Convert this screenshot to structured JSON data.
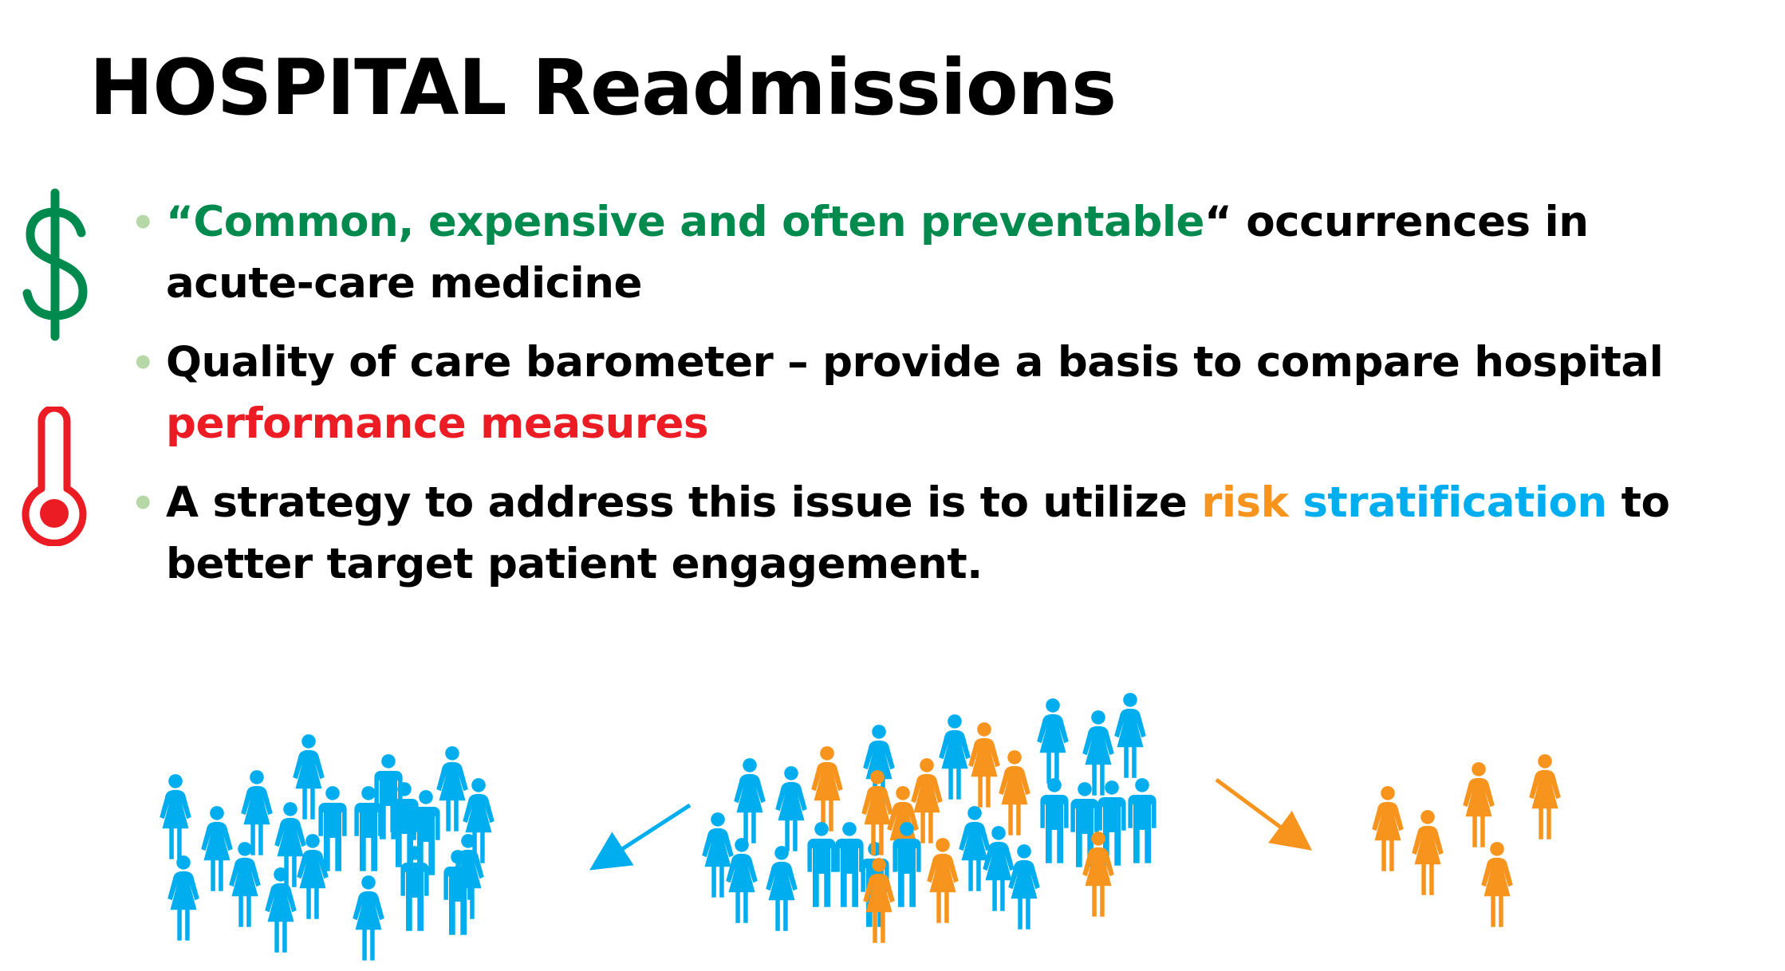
{
  "title": "HOSPITAL Readmissions",
  "bullets": [
    {
      "prefix": "“",
      "highlight": "Common, expensive and often preventable",
      "suffix": "“ occurrences in acute-care medicine"
    },
    {
      "text": "Quality of care barometer – provide a basis to compare hospital ",
      "highlight": "performance measures"
    },
    {
      "text": "A strategy to address this issue is to utilize ",
      "highlight_1": "risk",
      "space": " ",
      "highlight_2": "stratification",
      "suffix": " to better target patient engagement."
    }
  ],
  "icons": [
    "dollar-icon",
    "thermometer-icon",
    "person-icon",
    "arrow-icon"
  ],
  "colors": {
    "green": "#008a4e",
    "red": "#ec1c24",
    "orange": "#f7941d",
    "blue": "#00aeef",
    "bullet": "#b6d7a8"
  }
}
